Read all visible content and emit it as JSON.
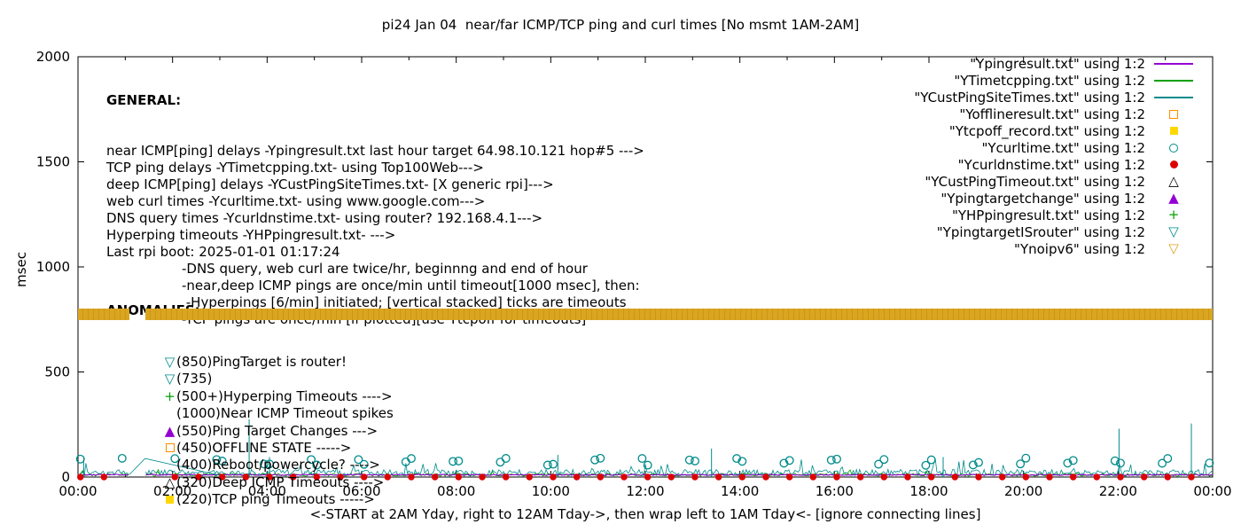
{
  "legend": [
    {
      "label": "\"Ypingresult.txt\" using 1:2",
      "shape": "line",
      "color": "#9400d3"
    },
    {
      "label": "\"YTimetcpping.txt\" using 1:2",
      "shape": "line",
      "color": "#00a000"
    },
    {
      "label": "\"YCustPingSiteTimes.txt\" using 1:2",
      "shape": "line",
      "color": "#008b8b"
    },
    {
      "label": "\"Yofflineresult.txt\" using 1:2",
      "shape": "square-open",
      "color": "#ff8c00"
    },
    {
      "label": "\"Ytcpoff_record.txt\" using 1:2",
      "shape": "square-filled",
      "color": "#ffd700"
    },
    {
      "label": "\"Ycurltime.txt\" using 1:2",
      "shape": "circle-open",
      "color": "#008b8b"
    },
    {
      "label": "\"Ycurldnstime.txt\" using 1:2",
      "shape": "circle-filled",
      "color": "#dd0000"
    },
    {
      "label": "\"YCustPingTimeout.txt\" using 1:2",
      "shape": "tri-up-open",
      "color": "#000000"
    },
    {
      "label": "\"Ypingtargetchange\" using 1:2",
      "shape": "tri-up-filled",
      "color": "#9400d3"
    },
    {
      "label": "\"YHPpingresult.txt\" using 1:2",
      "shape": "plus",
      "color": "#00a000"
    },
    {
      "label": "\"YpingtargetISrouter\" using 1:2",
      "shape": "tri-down-open",
      "color": "#008b8b"
    },
    {
      "label": "\"Ynoipv6\" using 1:2",
      "shape": "tri-down-open",
      "color": "#daa520"
    }
  ],
  "general": {
    "heading": "GENERAL:",
    "lines": [
      {
        "text": "near ICMP[ping] delays -Ypingresult.txt last hour target 64.98.10.121 hop#5 --->",
        "note": false
      },
      {
        "text": "TCP ping delays -YTimetcpping.txt- using Top100Web--->",
        "note": false
      },
      {
        "text": "deep ICMP[ping] delays -YCustPingSiteTimes.txt- [X generic rpi]--->",
        "note": false
      },
      {
        "text": "web curl times -Ycurltime.txt- using www.google.com--->",
        "note": false
      },
      {
        "text": "DNS query times -Ycurldnstime.txt- using router? 192.168.4.1--->",
        "note": false
      },
      {
        "text": "Hyperping timeouts -YHPpingresult.txt- --->",
        "note": false
      },
      {
        "text": "Last rpi boot: 2025-01-01 01:17:24",
        "note": false
      },
      {
        "text": "-DNS query, web curl are twice/hr, beginnng and end of hour",
        "note": true
      },
      {
        "text": "-near,deep ICMP pings are once/min until timeout[1000 msec], then:",
        "note": true
      },
      {
        "text": " -Hyperpings [6/min] initiated; [vertical stacked] ticks are timeouts",
        "note": true
      },
      {
        "text": "-TCP pings are once/min [if plotted][use Ytcpoff for timeouts]",
        "note": true
      }
    ]
  },
  "anomalies": {
    "heading": "ANOMALIES:",
    "items": [
      {
        "shape": "tri-down-open",
        "color": "#008b8b",
        "text": "(850)PingTarget is router!"
      },
      {
        "shape": "tri-down-open",
        "color": "#008b8b",
        "text": "(735)"
      },
      {
        "shape": "plus",
        "color": "#00a000",
        "text": "(500+)Hyperping Timeouts ---->"
      },
      {
        "shape": "none",
        "color": "",
        "text": "(1000)Near ICMP Timeout spikes"
      },
      {
        "shape": "tri-up-filled",
        "color": "#9400d3",
        "text": "(550)Ping Target Changes --->"
      },
      {
        "shape": "square-open",
        "color": "#ff8c00",
        "text": "(450)OFFLINE STATE ----->"
      },
      {
        "shape": "none",
        "color": "",
        "text": "(400)Reboot/powercycle? ---->"
      },
      {
        "shape": "tri-up-open",
        "color": "#000000",
        "text": "(320)Deep ICMP Timeouts ---->"
      },
      {
        "shape": "square-filled",
        "color": "#ffd700",
        "text": "(220)TCP ping Timeouts ----->"
      }
    ]
  },
  "chart_data": {
    "type": "line",
    "title": "pi24 Jan 04  near/far ICMP/TCP ping and curl times [No msmt 1AM-2AM]",
    "xlabel": "<-START at 2AM Yday, right to 12AM Tday->, then wrap left to 1AM Tday<- [ignore connecting lines]",
    "x_axis": {
      "tick_labels": [
        "00:00",
        "02:00",
        "04:00",
        "06:00",
        "08:00",
        "10:00",
        "12:00",
        "14:00",
        "16:00",
        "18:00",
        "20:00",
        "22:00",
        "00:00"
      ],
      "hours_range": [
        0,
        24
      ],
      "minor_tick_every_hours": 1
    },
    "y_axis": {
      "label": "msec",
      "ticks": [
        0,
        500,
        1000,
        1500,
        2000
      ],
      "range": [
        0,
        2000
      ]
    },
    "grid": false,
    "legend_position": "top-right-outside-style",
    "band": {
      "name": "Ynoipv6-timeout-band",
      "msec": 775,
      "thickness_msec": 58,
      "gap_hours": [
        1.08,
        1.42
      ],
      "color": "#daa520"
    },
    "no_data_hours": [
      1.08,
      1.42
    ],
    "marker_skip_hours": [
      1.0,
      2.05
    ],
    "seed": 20250104,
    "samples_per_hour": 30,
    "spike_color": "#008b8b",
    "noise_series": [
      {
        "name": "deep-icmp-YCustPingSiteTimes",
        "color": "#008b8b",
        "base": 6,
        "jitter": 30,
        "spike_chance": 0.05,
        "spike_max": 55,
        "width": 0.8
      },
      {
        "name": "tcp-ping-YTimetcpping",
        "color": "#00a000",
        "base": 4,
        "jitter": 14,
        "spike_chance": 0.02,
        "spike_max": 28,
        "width": 0.8
      },
      {
        "name": "near-icmp-Ypingresult",
        "color": "#9400d3",
        "base": 8,
        "jitter": 5,
        "spike_chance": 0,
        "spike_max": 0,
        "width": 1.1
      }
    ],
    "spikes": [
      {
        "hour": 0.12,
        "msec": 90
      },
      {
        "hour": 3.62,
        "msec": 275
      },
      {
        "hour": 4.05,
        "msec": 95
      },
      {
        "hour": 10.15,
        "msec": 105
      },
      {
        "hour": 13.4,
        "msec": 135
      },
      {
        "hour": 18.3,
        "msec": 95
      },
      {
        "hour": 22.02,
        "msec": 230
      },
      {
        "hour": 23.55,
        "msec": 255
      }
    ],
    "connecting_line": {
      "color": "#008b8b",
      "points": [
        [
          1.08,
          10
        ],
        [
          1.42,
          88
        ],
        [
          3.0,
          8
        ]
      ]
    },
    "curl_markers": {
      "name": "Ycurltime",
      "shape": "circle-open",
      "color": "#008b8b",
      "minute_offsets": [
        3,
        56
      ],
      "msec_min": 55,
      "msec_max": 90
    },
    "dns_markers": {
      "name": "Ycurldnstime",
      "shape": "circle-filled",
      "color": "#dd0000",
      "minute_offsets": [
        3,
        33
      ],
      "msec": 0
    }
  }
}
